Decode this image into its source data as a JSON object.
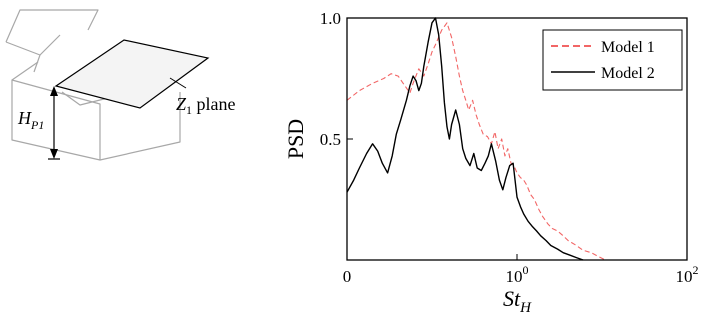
{
  "diagram": {
    "plane_label": {
      "main": "Z",
      "sub": "1",
      "rest": " plane"
    },
    "height_label": {
      "main": "H",
      "sub": "P1"
    }
  },
  "chart_data": {
    "type": "line",
    "xscale": "log",
    "xlim": [
      0.01,
      100
    ],
    "ylim": [
      0,
      1.0
    ],
    "xlabel": {
      "main": "St",
      "sub": "H"
    },
    "ylabel": "PSD",
    "xticks": [
      {
        "value": 0.01,
        "base": "0",
        "exp": ""
      },
      {
        "value": 1,
        "base": "10",
        "exp": "0"
      },
      {
        "value": 100,
        "base": "10",
        "exp": "2"
      }
    ],
    "yticks": [
      {
        "value": 0.5,
        "label": "0.5"
      },
      {
        "value": 1.0,
        "label": "1.0"
      }
    ],
    "legend_position": "top-right",
    "grid": false,
    "series": [
      {
        "name": "Model 1",
        "color": "#ee3333",
        "style": "dashed",
        "x": [
          0.01,
          0.014,
          0.02,
          0.027,
          0.033,
          0.04,
          0.048,
          0.055,
          0.06,
          0.07,
          0.08,
          0.09,
          0.1,
          0.11,
          0.13,
          0.15,
          0.17,
          0.19,
          0.21,
          0.23,
          0.25,
          0.27,
          0.3,
          0.33,
          0.36,
          0.4,
          0.45,
          0.5,
          0.55,
          0.6,
          0.66,
          0.72,
          0.78,
          0.85,
          0.92,
          1.0,
          1.1,
          1.2,
          1.3,
          1.45,
          1.6,
          1.8,
          2.0,
          2.3,
          2.6,
          3.0,
          3.5,
          4.0,
          5.0,
          6.0,
          7.5,
          9.0,
          11.0
        ],
        "y": [
          0.66,
          0.7,
          0.73,
          0.75,
          0.77,
          0.76,
          0.72,
          0.69,
          0.73,
          0.79,
          0.76,
          0.81,
          0.86,
          0.89,
          0.95,
          0.98,
          0.92,
          0.84,
          0.76,
          0.7,
          0.66,
          0.62,
          0.66,
          0.6,
          0.56,
          0.52,
          0.51,
          0.48,
          0.53,
          0.46,
          0.5,
          0.43,
          0.46,
          0.4,
          0.39,
          0.36,
          0.34,
          0.33,
          0.31,
          0.27,
          0.25,
          0.21,
          0.18,
          0.15,
          0.13,
          0.12,
          0.1,
          0.08,
          0.06,
          0.04,
          0.03,
          0.015,
          0.0
        ]
      },
      {
        "name": "Model 2",
        "color": "#000000",
        "style": "solid",
        "x": [
          0.01,
          0.012,
          0.014,
          0.017,
          0.02,
          0.023,
          0.026,
          0.03,
          0.034,
          0.038,
          0.043,
          0.05,
          0.055,
          0.06,
          0.065,
          0.07,
          0.075,
          0.08,
          0.09,
          0.1,
          0.11,
          0.12,
          0.13,
          0.14,
          0.15,
          0.16,
          0.17,
          0.19,
          0.21,
          0.23,
          0.25,
          0.28,
          0.31,
          0.34,
          0.38,
          0.42,
          0.46,
          0.5,
          0.56,
          0.62,
          0.68,
          0.74,
          0.82,
          0.9,
          1.0,
          1.1,
          1.2,
          1.35,
          1.5,
          1.7,
          1.9,
          2.2,
          2.5,
          3.0,
          3.5,
          4.2,
          5.0,
          6.0
        ],
        "y": [
          0.28,
          0.33,
          0.38,
          0.44,
          0.48,
          0.45,
          0.4,
          0.36,
          0.43,
          0.52,
          0.58,
          0.66,
          0.72,
          0.76,
          0.74,
          0.7,
          0.73,
          0.8,
          0.9,
          0.98,
          1.0,
          0.93,
          0.8,
          0.65,
          0.55,
          0.5,
          0.56,
          0.62,
          0.56,
          0.46,
          0.42,
          0.39,
          0.44,
          0.38,
          0.37,
          0.4,
          0.43,
          0.48,
          0.41,
          0.33,
          0.29,
          0.34,
          0.39,
          0.4,
          0.26,
          0.22,
          0.19,
          0.16,
          0.14,
          0.12,
          0.1,
          0.08,
          0.06,
          0.045,
          0.03,
          0.02,
          0.01,
          0.0
        ]
      }
    ]
  }
}
